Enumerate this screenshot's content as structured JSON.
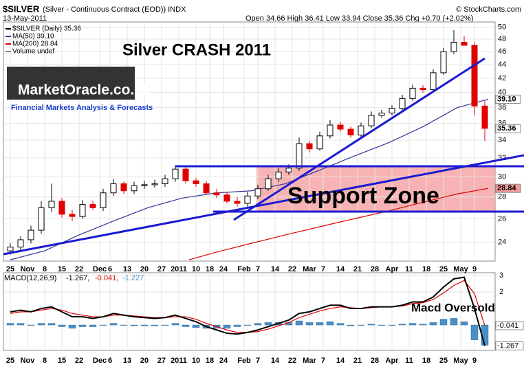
{
  "chart_data": {
    "type": "candlestick",
    "header": {
      "symbol": "$SILVER",
      "description": "(Silver - Continuous Contract (EOD)) INDX",
      "date": "13-May-2011",
      "quote": "Open 34.66  High 36.41  Low 33.94  Close 35.36  Chg +0.70 (+2.02%)",
      "credit": "© StockCharts.com"
    },
    "legend": [
      "$SILVER (Daily) 35.36",
      "MA(50) 39.10",
      "MA(200) 28.84",
      "Volume undef"
    ],
    "annotations": {
      "title": "Silver CRASH 2011",
      "logo": "MarketOracle.co.uk",
      "tagline": "Financial Markets Analysis & Forecasts",
      "zone": "Support Zone",
      "macd_note": "Macd Oversold"
    },
    "log_scale": true,
    "up_color": "#000000",
    "down_color": "#e00000",
    "xlim": [
      -2,
      141
    ],
    "xticks": [
      {
        "value": 0,
        "label": "25"
      },
      {
        "value": 5,
        "label": "Nov"
      },
      {
        "value": 10,
        "label": "8"
      },
      {
        "value": 15,
        "label": "15"
      },
      {
        "value": 20,
        "label": "22"
      },
      {
        "value": 26,
        "label": "Dec"
      },
      {
        "value": 29,
        "label": "6"
      },
      {
        "value": 34,
        "label": "13"
      },
      {
        "value": 39,
        "label": "20"
      },
      {
        "value": 44,
        "label": "27"
      },
      {
        "value": 49,
        "label": "2011"
      },
      {
        "value": 54,
        "label": "10"
      },
      {
        "value": 58,
        "label": "18"
      },
      {
        "value": 62,
        "label": "24"
      },
      {
        "value": 68,
        "label": "Feb"
      },
      {
        "value": 72,
        "label": "7"
      },
      {
        "value": 77,
        "label": "14"
      },
      {
        "value": 82,
        "label": "22"
      },
      {
        "value": 87,
        "label": "Mar"
      },
      {
        "value": 91,
        "label": "7"
      },
      {
        "value": 96,
        "label": "14"
      },
      {
        "value": 101,
        "label": "21"
      },
      {
        "value": 106,
        "label": "28"
      },
      {
        "value": 111,
        "label": "Apr"
      },
      {
        "value": 116,
        "label": "11"
      },
      {
        "value": 121,
        "label": "18"
      },
      {
        "value": 126,
        "label": "25"
      },
      {
        "value": 131,
        "label": "May"
      },
      {
        "value": 135,
        "label": "9"
      }
    ],
    "ylim": [
      22.5,
      50.9
    ],
    "yticks": [
      24,
      26,
      28,
      30,
      32,
      34,
      36,
      38,
      40,
      42,
      44,
      46,
      48,
      50
    ],
    "x": [
      0,
      3,
      6,
      9,
      12,
      15,
      18,
      21,
      24,
      27,
      30,
      33,
      36,
      39,
      42,
      45,
      48,
      51,
      54,
      57,
      60,
      63,
      66,
      69,
      72,
      75,
      78,
      81,
      84,
      87,
      90,
      93,
      96,
      99,
      102,
      105,
      108,
      111,
      114,
      117,
      120,
      123,
      126,
      129,
      132,
      135,
      138
    ],
    "open": [
      23.3,
      23.6,
      24.2,
      25.0,
      27.0,
      27.6,
      26.4,
      26.2,
      27.3,
      27.0,
      28.4,
      29.3,
      28.6,
      29.1,
      29.2,
      29.3,
      29.8,
      30.8,
      29.6,
      29.3,
      28.4,
      28.2,
      27.6,
      27.4,
      28.1,
      28.8,
      29.8,
      30.5,
      30.9,
      33.6,
      33.0,
      34.5,
      35.8,
      35.3,
      34.6,
      35.7,
      37.0,
      37.3,
      37.9,
      39.2,
      40.6,
      40.4,
      42.8,
      46.0,
      47.5,
      47.0,
      38.2
    ],
    "high": [
      23.9,
      24.5,
      25.4,
      27.6,
      29.3,
      27.9,
      26.8,
      27.7,
      27.6,
      28.8,
      29.8,
      29.5,
      29.5,
      29.6,
      29.7,
      30.2,
      31.2,
      31.0,
      29.9,
      29.6,
      28.8,
      28.5,
      28.0,
      28.5,
      29.2,
      30.2,
      30.9,
      31.3,
      34.3,
      33.9,
      35.0,
      36.4,
      36.2,
      35.6,
      36.1,
      37.5,
      37.7,
      38.3,
      39.7,
      41.1,
      41.0,
      43.3,
      46.6,
      49.5,
      48.5,
      47.5,
      38.9
    ],
    "low": [
      23.0,
      23.3,
      23.9,
      24.7,
      26.6,
      26.1,
      25.8,
      26.0,
      26.8,
      26.7,
      28.1,
      28.3,
      28.3,
      28.8,
      28.9,
      29.0,
      29.5,
      29.3,
      29.0,
      28.2,
      27.9,
      27.4,
      27.1,
      27.1,
      27.8,
      28.6,
      29.5,
      30.2,
      30.6,
      32.6,
      32.8,
      34.2,
      35.0,
      34.3,
      34.3,
      35.4,
      36.7,
      37.0,
      37.6,
      38.9,
      40.0,
      40.1,
      42.5,
      45.6,
      47.0,
      37.0,
      33.9
    ],
    "close": [
      23.6,
      24.2,
      25.0,
      27.0,
      27.6,
      26.4,
      26.2,
      27.3,
      27.0,
      28.4,
      29.3,
      28.6,
      29.1,
      29.2,
      29.3,
      29.8,
      30.8,
      29.6,
      29.3,
      28.4,
      28.2,
      27.6,
      27.4,
      28.1,
      28.8,
      29.8,
      30.5,
      30.9,
      33.6,
      33.0,
      34.5,
      35.8,
      35.3,
      34.6,
      35.7,
      37.0,
      37.3,
      37.9,
      39.2,
      40.6,
      40.4,
      42.8,
      46.0,
      47.5,
      47.0,
      38.2,
      35.4
    ],
    "series": [
      {
        "name": "MA(50)",
        "color": "#33339a",
        "x": [
          0,
          10,
          20,
          30,
          40,
          50,
          60,
          70,
          80,
          90,
          100,
          110,
          120,
          130,
          139
        ],
        "values": [
          22.6,
          23.3,
          24.6,
          25.8,
          27.0,
          27.9,
          28.4,
          28.6,
          29.3,
          30.7,
          32.2,
          33.7,
          35.6,
          38.0,
          39.1
        ]
      },
      {
        "name": "MA(200)",
        "color": "#e00000",
        "x": [
          52,
          60,
          70,
          80,
          90,
          100,
          110,
          120,
          130,
          139
        ],
        "values": [
          22.6,
          23.2,
          23.9,
          24.6,
          25.3,
          26.0,
          26.7,
          27.5,
          28.3,
          28.84
        ]
      }
    ],
    "price_labels": [
      {
        "value": 39.1,
        "label": "39.10"
      },
      {
        "value": 35.36,
        "label": "35.36"
      },
      {
        "value": 28.84,
        "label": "28.84"
      }
    ],
    "macd": {
      "title": "MACD(12,26,9)",
      "readout": [
        "-1.267,",
        "-0.041,",
        "-1.227"
      ],
      "ylim": [
        -1.54,
        3.17
      ],
      "yticks": [
        3,
        2
      ],
      "macd_color": "#000000",
      "signal_color": "#e00000",
      "hist_color": "#4a90c8",
      "macd": [
        0.8,
        0.9,
        0.8,
        1.0,
        1.1,
        0.8,
        0.5,
        0.5,
        0.4,
        0.5,
        0.7,
        0.6,
        0.5,
        0.45,
        0.4,
        0.45,
        0.6,
        0.4,
        0.2,
        -0.1,
        -0.3,
        -0.5,
        -0.55,
        -0.45,
        -0.3,
        -0.1,
        0.1,
        0.3,
        0.7,
        0.8,
        1.0,
        1.2,
        1.2,
        1.0,
        1.0,
        1.1,
        1.1,
        1.1,
        1.2,
        1.4,
        1.4,
        1.7,
        2.3,
        2.8,
        2.9,
        1.0,
        -1.267
      ],
      "signal": [
        0.7,
        0.8,
        0.8,
        0.9,
        1.0,
        0.9,
        0.7,
        0.6,
        0.5,
        0.5,
        0.6,
        0.6,
        0.55,
        0.5,
        0.45,
        0.45,
        0.5,
        0.5,
        0.35,
        0.1,
        -0.1,
        -0.3,
        -0.45,
        -0.45,
        -0.4,
        -0.25,
        -0.05,
        0.15,
        0.45,
        0.65,
        0.85,
        1.0,
        1.1,
        1.05,
        1.0,
        1.05,
        1.1,
        1.1,
        1.15,
        1.3,
        1.35,
        1.55,
        1.95,
        2.4,
        2.7,
        1.9,
        -0.041
      ],
      "histogram": [
        0.1,
        0.1,
        0.0,
        0.1,
        0.1,
        -0.1,
        -0.2,
        -0.1,
        -0.1,
        0.0,
        0.1,
        0.0,
        -0.05,
        -0.05,
        -0.05,
        0.0,
        0.1,
        -0.1,
        -0.15,
        -0.2,
        -0.2,
        -0.2,
        -0.1,
        0.0,
        0.1,
        0.15,
        0.15,
        0.15,
        0.25,
        0.15,
        0.15,
        0.2,
        0.1,
        -0.05,
        0.0,
        0.05,
        0.0,
        0.0,
        0.05,
        0.1,
        0.05,
        0.15,
        0.35,
        0.4,
        0.2,
        -0.9,
        -1.227
      ],
      "value_labels": [
        {
          "value": -0.041,
          "label": "-0.041"
        },
        {
          "value": -1.267,
          "label": "-1.267"
        }
      ]
    }
  }
}
